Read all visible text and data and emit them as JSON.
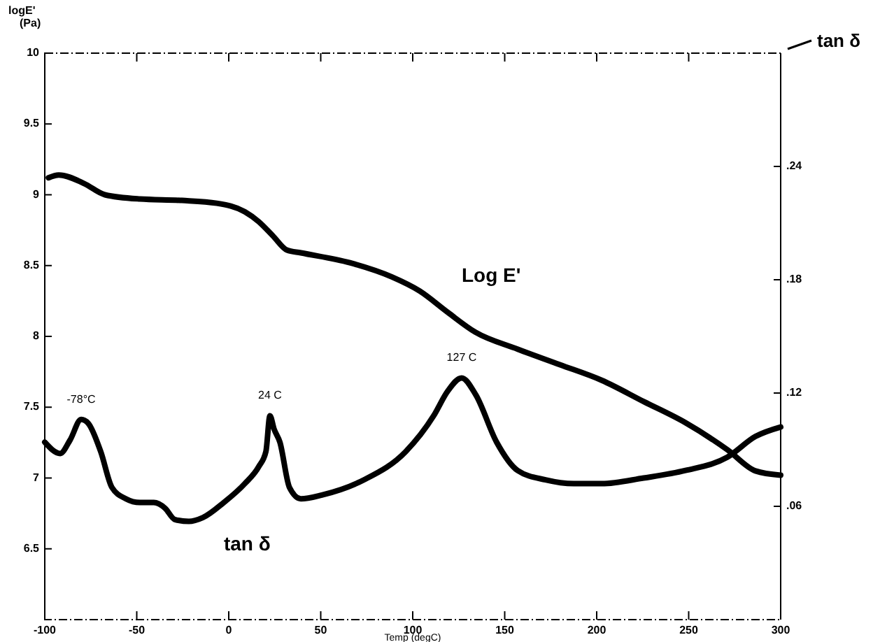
{
  "chart_data": {
    "type": "line",
    "xlabel": "Temp (degC)",
    "ylabel": "logE' (Pa)",
    "y2label": "tan δ",
    "xlim": [
      -100,
      300
    ],
    "xticks": [
      -100,
      -50,
      0,
      50,
      100,
      150,
      200,
      250,
      300
    ],
    "ylim": [
      6,
      10
    ],
    "yticks": [
      6.5,
      7,
      7.5,
      8,
      8.5,
      9,
      9.5,
      10
    ],
    "y2lim": [
      0,
      0.3
    ],
    "y2ticks": [
      {
        "value": 0.06,
        "label": ".06"
      },
      {
        "value": 0.12,
        "label": ".12"
      },
      {
        "value": 0.18,
        "label": ".18"
      },
      {
        "value": 0.24,
        "label": ".24"
      }
    ],
    "grid": false,
    "series": [
      {
        "name": "Log E'",
        "color": "#000000",
        "x": [
          -98,
          -92.4,
          -78.7,
          -67.3,
          -48.3,
          -25.5,
          -6.5,
          8.7,
          16.3,
          24,
          31.6,
          39.2,
          65.8,
          88.6,
          103.8,
          119,
          134,
          157,
          180,
          202.7,
          225.5,
          248.3,
          271,
          286.3,
          300
        ],
        "values": [
          9.12,
          9.14,
          9.08,
          9.0,
          8.97,
          8.96,
          8.94,
          8.88,
          8.81,
          8.71,
          8.61,
          8.59,
          8.52,
          8.42,
          8.32,
          8.17,
          8.03,
          7.91,
          7.8,
          7.69,
          7.54,
          7.39,
          7.2,
          7.05,
          7.02
        ]
      },
      {
        "name": "tan δ",
        "color": "#000000",
        "axis": "y2",
        "x": [
          -100,
          -91.6,
          -86.3,
          -80.2,
          -76.4,
          -69.6,
          -63.5,
          -55.9,
          -48.3,
          -40.7,
          -34.6,
          -29.3,
          -21.7,
          -14.1,
          -2.7,
          8.7,
          16.3,
          20.2,
          22.4,
          24.6,
          27.8,
          33,
          39.2,
          50.6,
          73.4,
          96.2,
          111.4,
          119,
          126.6,
          134.3,
          145.6,
          157,
          172.2,
          187.5,
          202.7,
          225.5,
          248.3,
          271,
          286.3,
          300
        ],
        "values": [
          0.094,
          0.088,
          0.095,
          0.106,
          0.104,
          0.089,
          0.07,
          0.064,
          0.062,
          0.062,
          0.059,
          0.053,
          0.052,
          0.054,
          0.062,
          0.072,
          0.081,
          0.089,
          0.108,
          0.101,
          0.094,
          0.07,
          0.064,
          0.066,
          0.074,
          0.089,
          0.108,
          0.121,
          0.128,
          0.119,
          0.094,
          0.079,
          0.074,
          0.072,
          0.072,
          0.075,
          0.079,
          0.086,
          0.097,
          0.102
        ]
      }
    ],
    "annotations": [
      "-78°C",
      "24 C",
      "127 C"
    ]
  }
}
